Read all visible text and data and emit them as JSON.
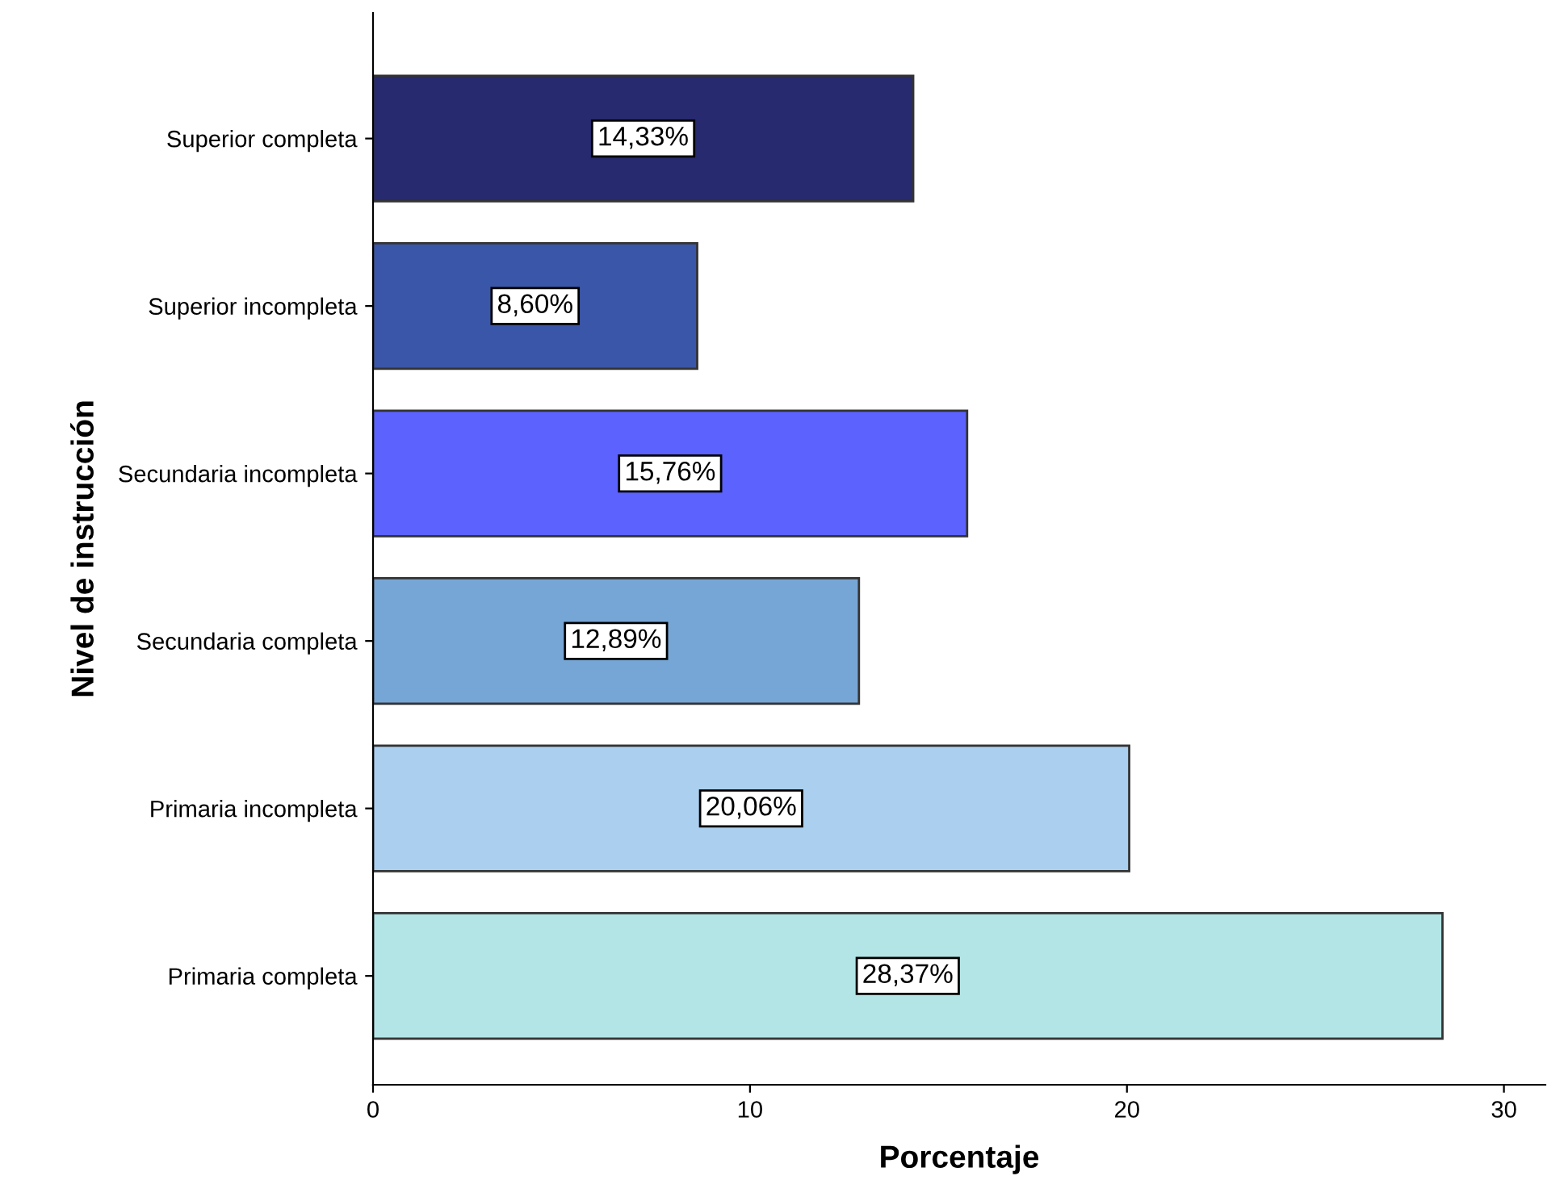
{
  "chart_data": {
    "type": "bar",
    "orientation": "horizontal",
    "xlabel": "Porcentaje",
    "ylabel": "Nivel de instrucción",
    "categories": [
      "Superior completa",
      "Superior incompleta",
      "Secundaria incompleta",
      "Secundaria completa",
      "Primaria incompleta",
      "Primaria completa"
    ],
    "values": [
      14.33,
      8.6,
      15.76,
      12.89,
      20.06,
      28.37
    ],
    "value_labels": [
      "14,33%",
      "8,60%",
      "15,76%",
      "12,89%",
      "20,06%",
      "28,37%"
    ],
    "colors": [
      "#272a6e",
      "#3a56a8",
      "#5b62fe",
      "#76a6d6",
      "#abcfee",
      "#b3e5e6"
    ],
    "xlim": [
      0,
      31.1
    ],
    "xticks": [
      0,
      10,
      20,
      30
    ],
    "grid": false,
    "legend": false
  }
}
